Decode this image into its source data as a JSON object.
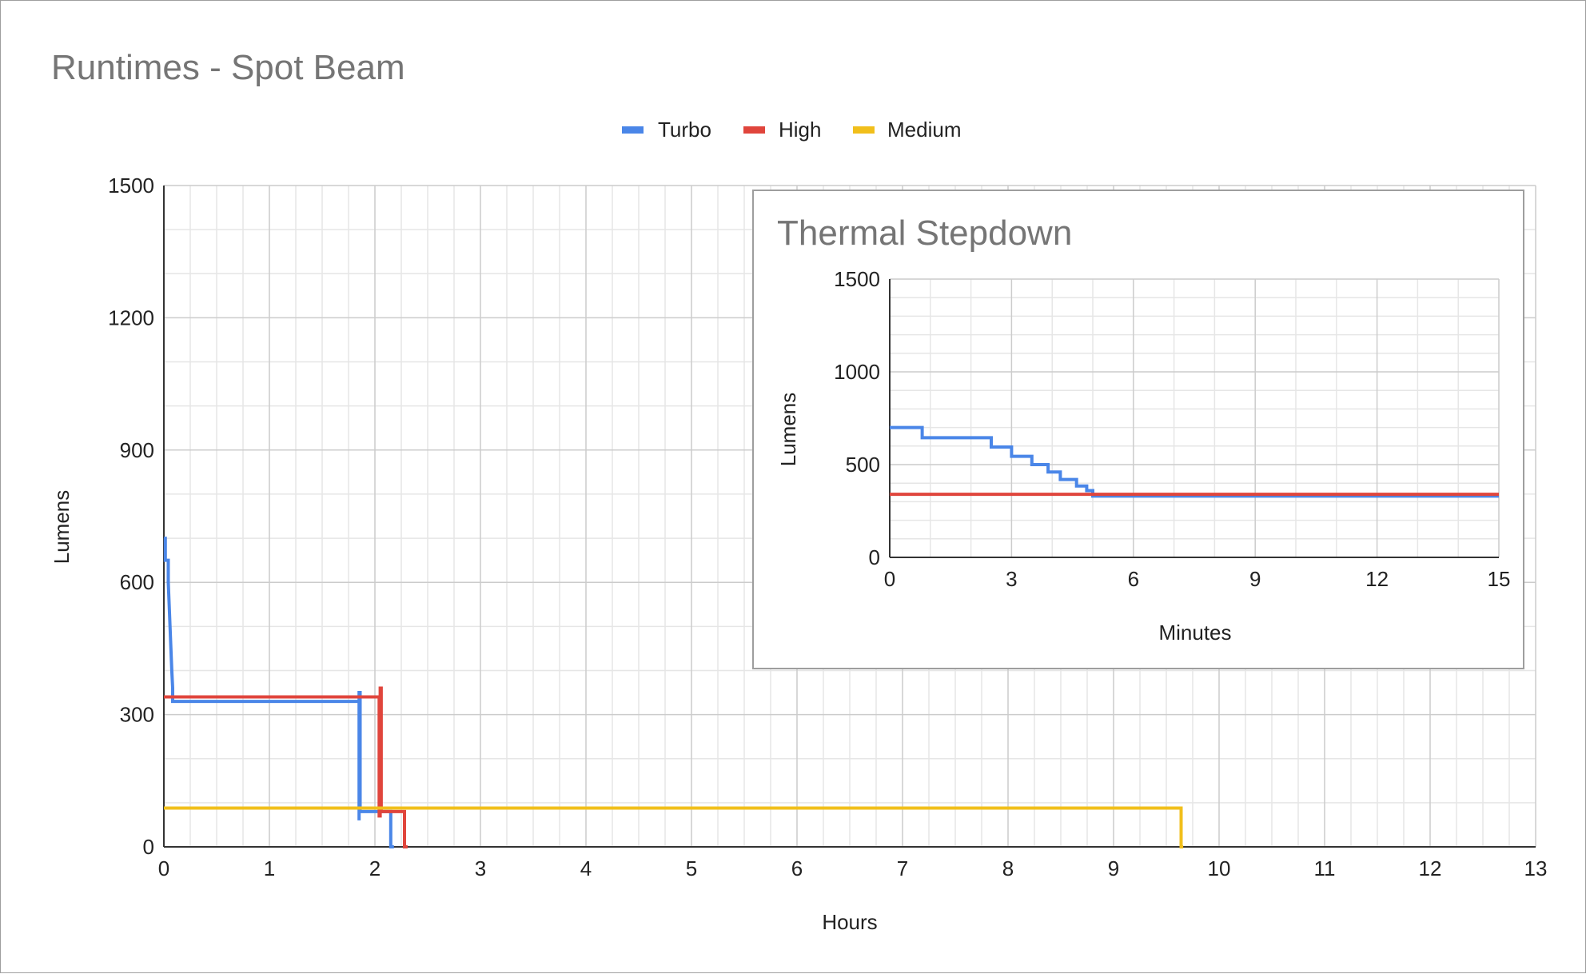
{
  "colors": {
    "turbo": "#4a86e8",
    "high": "#e0453c",
    "medium": "#f1bf1b",
    "grid_major": "#cccccc",
    "grid_minor": "#e6e6e6",
    "title": "#757575"
  },
  "chart_data": [
    {
      "type": "line",
      "title": "Runtimes - Spot Beam",
      "xlabel": "Hours",
      "ylabel": "Lumens",
      "xlim": [
        0,
        13
      ],
      "ylim": [
        0,
        1500
      ],
      "x_ticks": [
        "0",
        "1",
        "2",
        "3",
        "4",
        "5",
        "6",
        "7",
        "8",
        "9",
        "10",
        "11",
        "12",
        "13"
      ],
      "y_ticks": [
        "0",
        "300",
        "600",
        "900",
        "1200",
        "1500"
      ],
      "grid": true,
      "legend_position": "top",
      "series": [
        {
          "name": "Turbo",
          "color": "#4a86e8",
          "points": [
            [
              0,
              700
            ],
            [
              0.014,
              700
            ],
            [
              0.014,
              650
            ],
            [
              0.042,
              650
            ],
            [
              0.042,
              600
            ],
            [
              0.05,
              550
            ],
            [
              0.058,
              500
            ],
            [
              0.067,
              450
            ],
            [
              0.075,
              400
            ],
            [
              0.083,
              360
            ],
            [
              0.083,
              330
            ],
            [
              1.85,
              330
            ],
            [
              1.85,
              60
            ],
            [
              1.85,
              350
            ],
            [
              1.86,
              350
            ],
            [
              1.86,
              80
            ],
            [
              2.15,
              80
            ],
            [
              2.15,
              0
            ],
            [
              2.18,
              0
            ]
          ]
        },
        {
          "name": "High",
          "color": "#e0453c",
          "points": [
            [
              0,
              340
            ],
            [
              2.04,
              340
            ],
            [
              2.04,
              70
            ],
            [
              2.05,
              70
            ],
            [
              2.05,
              360
            ],
            [
              2.06,
              360
            ],
            [
              2.06,
              80
            ],
            [
              2.28,
              80
            ],
            [
              2.28,
              0
            ],
            [
              2.31,
              0
            ]
          ]
        },
        {
          "name": "Medium",
          "color": "#f1bf1b",
          "points": [
            [
              0,
              88
            ],
            [
              9.64,
              88
            ],
            [
              9.64,
              0
            ],
            [
              9.66,
              0
            ]
          ]
        }
      ]
    },
    {
      "type": "line",
      "title": "Thermal Stepdown",
      "xlabel": "Minutes",
      "ylabel": "Lumens",
      "xlim": [
        0,
        15
      ],
      "ylim": [
        0,
        1500
      ],
      "x_ticks": [
        "0",
        "3",
        "6",
        "9",
        "12",
        "15"
      ],
      "y_ticks": [
        "0",
        "500",
        "1000",
        "1500"
      ],
      "grid": true,
      "series": [
        {
          "name": "Turbo",
          "color": "#4a86e8",
          "points": [
            [
              0,
              700
            ],
            [
              0.8,
              700
            ],
            [
              0.8,
              645
            ],
            [
              2.5,
              645
            ],
            [
              2.5,
              595
            ],
            [
              3.0,
              595
            ],
            [
              3.0,
              545
            ],
            [
              3.5,
              545
            ],
            [
              3.5,
              500
            ],
            [
              3.9,
              500
            ],
            [
              3.9,
              460
            ],
            [
              4.2,
              460
            ],
            [
              4.2,
              420
            ],
            [
              4.6,
              420
            ],
            [
              4.6,
              385
            ],
            [
              4.85,
              385
            ],
            [
              4.85,
              360
            ],
            [
              5.0,
              360
            ],
            [
              5.0,
              330
            ],
            [
              15,
              330
            ]
          ]
        },
        {
          "name": "High",
          "color": "#e0453c",
          "points": [
            [
              0,
              340
            ],
            [
              15,
              340
            ]
          ]
        }
      ]
    }
  ]
}
